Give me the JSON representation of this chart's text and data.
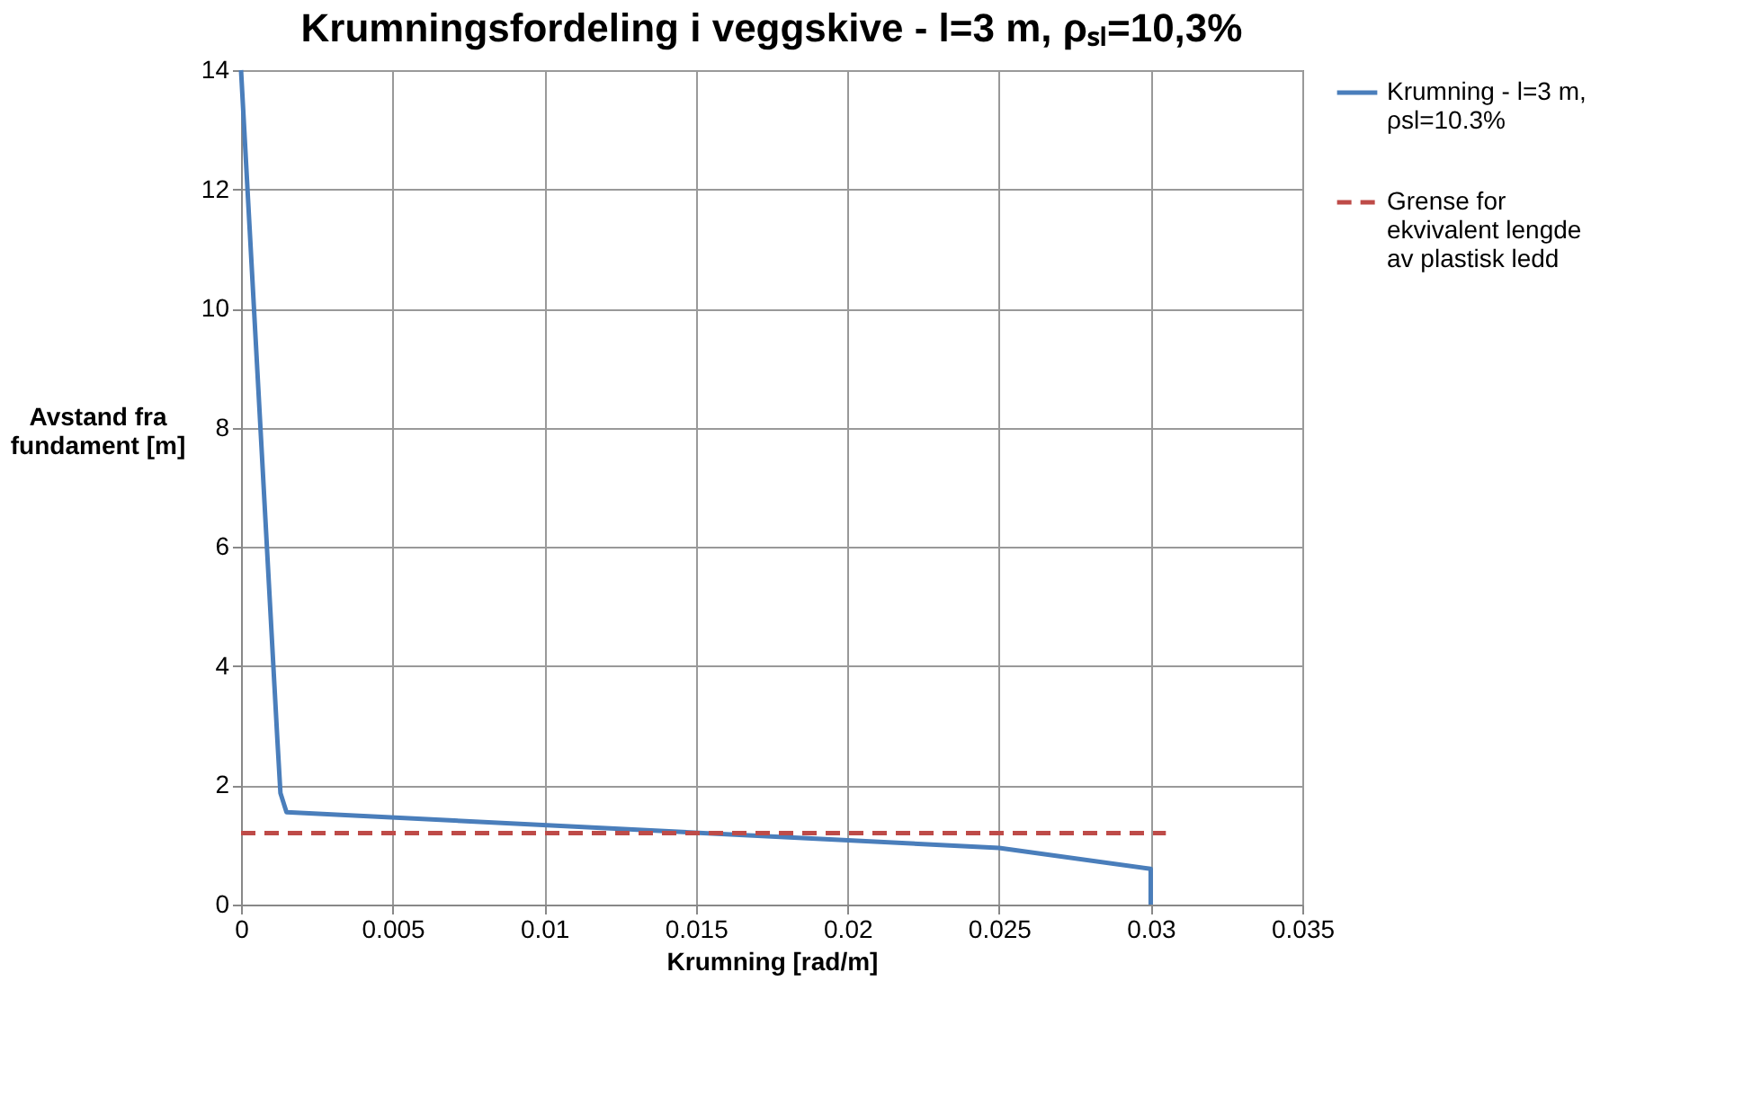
{
  "chart_data": {
    "type": "line",
    "title": "Krumningsfordeling i veggskive - l=3 m, ρₛₗ=10,3%",
    "xlabel": "Krumning [rad/m]",
    "ylabel": "Avstand fra fundament [m]",
    "series": [
      {
        "name": "Krumning - l=3 m, ρsl=10.3%",
        "color": "#4a7ebb",
        "line_style": "solid",
        "x": [
          0,
          0.0012,
          0.0013,
          0.0015,
          0.025,
          0.03,
          0.03
        ],
        "values": [
          14,
          2.75,
          1.87,
          1.55,
          0.95,
          0.6,
          0
        ]
      },
      {
        "name": "Grense for ekvivalent lengde av plastisk ledd",
        "color": "#be4b48",
        "line_style": "dashed",
        "x": [
          0,
          0.0305
        ],
        "values": [
          1.2,
          1.2
        ]
      }
    ],
    "xlim": [
      0,
      0.035
    ],
    "xticks": [
      0,
      0.005,
      0.01,
      0.015,
      0.02,
      0.025,
      0.03,
      0.035
    ],
    "ylim": [
      0,
      14
    ],
    "yticks": [
      0,
      2,
      4,
      6,
      8,
      10,
      12,
      14
    ],
    "grid": true,
    "legend": "right",
    "marker": "none"
  }
}
